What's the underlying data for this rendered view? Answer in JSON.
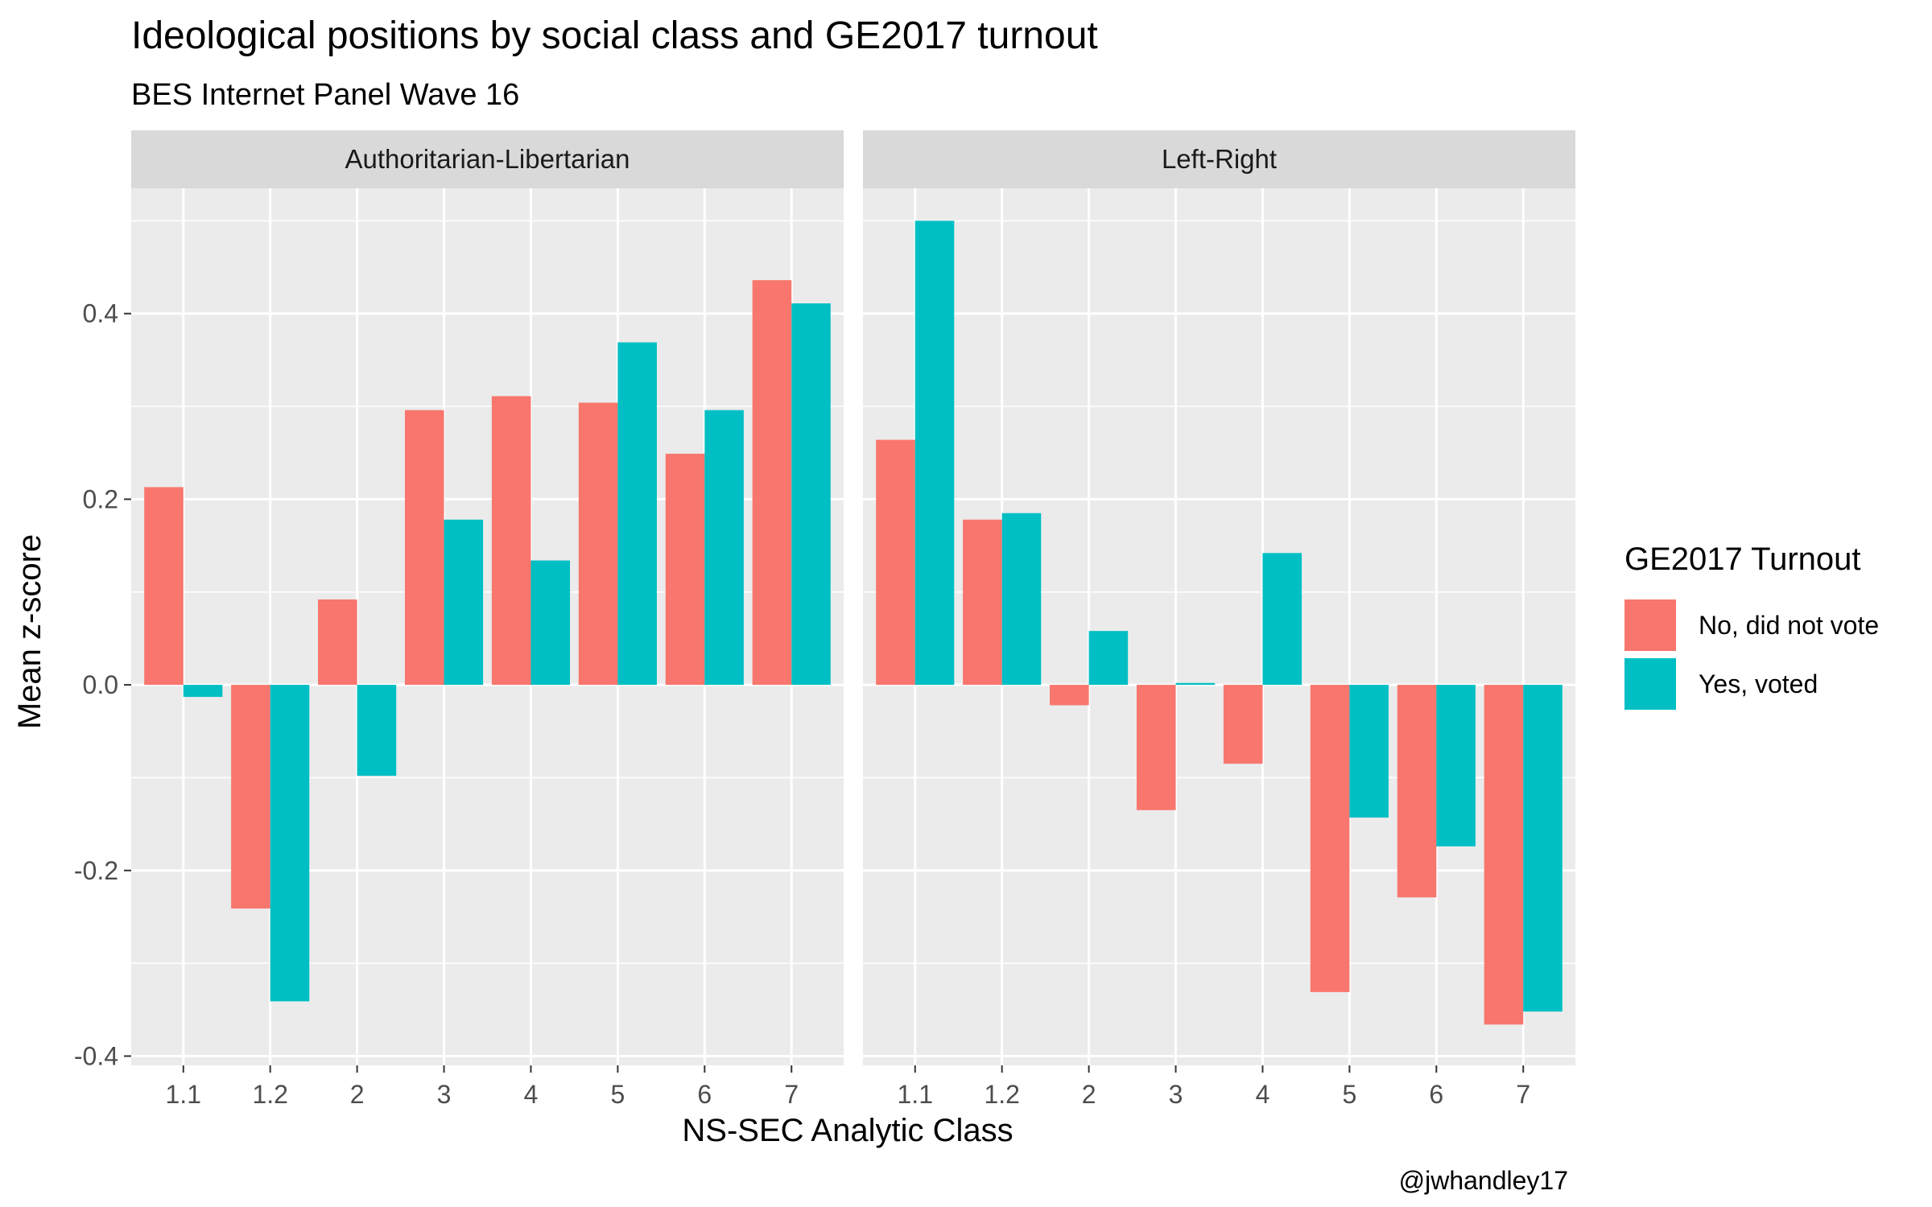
{
  "chart_data": {
    "type": "bar",
    "title": "Ideological positions by social class and GE2017 turnout",
    "subtitle": "BES Internet Panel Wave 16",
    "xlabel": "NS-SEC Analytic Class",
    "ylabel": "Mean z-score",
    "caption": "@jwhandley17",
    "ylim": [
      -0.41,
      0.535
    ],
    "yticks": [
      -0.4,
      -0.2,
      0.0,
      0.2,
      0.4
    ],
    "ytick_labels": [
      "-0.4",
      "-0.2",
      "0.0",
      "0.2",
      "0.4"
    ],
    "categories": [
      "1.1",
      "1.2",
      "2",
      "3",
      "4",
      "5",
      "6",
      "7"
    ],
    "legend": {
      "title": "GE2017 Turnout",
      "position": "right"
    },
    "colors": {
      "no_vote": "#F8766D",
      "voted": "#00BFC4",
      "panel_bg": "#EBEBEB",
      "strip_bg": "#D9D9D9",
      "grid": "#FFFFFF"
    },
    "panels": [
      {
        "facet": "Authoritarian-Libertarian",
        "series": [
          {
            "name": "No, did not vote",
            "values": [
              0.213,
              -0.241,
              0.092,
              0.296,
              0.311,
              0.304,
              0.249,
              0.436
            ]
          },
          {
            "name": "Yes, voted",
            "values": [
              -0.013,
              -0.341,
              -0.098,
              0.178,
              0.134,
              0.369,
              0.296,
              0.411
            ]
          }
        ]
      },
      {
        "facet": "Left-Right",
        "series": [
          {
            "name": "No, did not vote",
            "values": [
              0.264,
              0.178,
              -0.022,
              -0.135,
              -0.085,
              -0.331,
              -0.229,
              -0.366
            ]
          },
          {
            "name": "Yes, voted",
            "values": [
              0.5,
              0.185,
              0.058,
              0.002,
              0.142,
              -0.143,
              -0.174,
              -0.352
            ]
          }
        ]
      }
    ]
  }
}
